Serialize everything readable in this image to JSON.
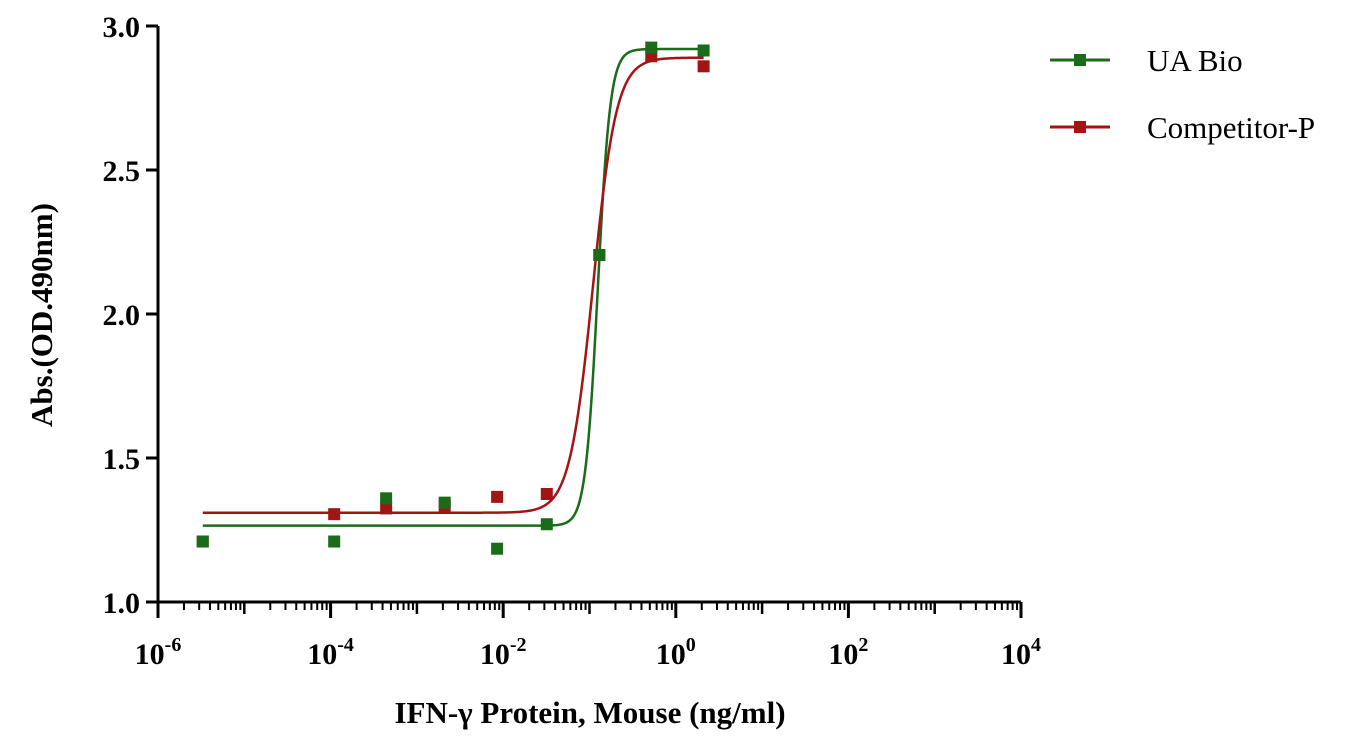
{
  "chart_data": {
    "type": "scatter",
    "xscale": "log",
    "xlim": [
      1e-06,
      10000
    ],
    "ylim": [
      1.0,
      3.0
    ],
    "xlabel": "IFN-γ Protein, Mouse  (ng/ml)",
    "ylabel": "Abs.(OD.490nm)",
    "x_ticks": [
      {
        "base": "10",
        "exp": "-6"
      },
      {
        "base": "10",
        "exp": "-4"
      },
      {
        "base": "10",
        "exp": "-2"
      },
      {
        "base": "10",
        "exp": "0"
      },
      {
        "base": "10",
        "exp": "2"
      },
      {
        "base": "10",
        "exp": "4"
      }
    ],
    "y_ticks": [
      "1.0",
      "1.5",
      "2.0",
      "2.5",
      "3.0"
    ],
    "legend_position": "top-right",
    "series": [
      {
        "name": "UA Bio",
        "color": "#1a6b1a",
        "marker": "square",
        "x": [
          3.3e-06,
          0.00011,
          0.00044,
          0.0021,
          0.0085,
          0.032,
          0.13,
          0.52,
          2.1
        ],
        "y": [
          1.21,
          1.21,
          1.36,
          1.345,
          1.185,
          1.27,
          2.205,
          2.925,
          2.915
        ],
        "fit": {
          "bottom": 1.265,
          "top": 2.92,
          "ec50": 0.125,
          "hill": 6.0
        }
      },
      {
        "name": "Competitor-P",
        "color": "#a31515",
        "marker": "square",
        "x": [
          3.3e-06,
          0.00011,
          0.00044,
          0.0021,
          0.0085,
          0.032,
          0.13,
          0.52,
          2.1
        ],
        "y": [
          1.21,
          1.305,
          1.325,
          1.335,
          1.365,
          1.375,
          2.205,
          2.895,
          2.86
        ],
        "fit": {
          "bottom": 1.31,
          "top": 2.89,
          "ec50": 0.11,
          "hill": 3.2
        }
      }
    ]
  }
}
